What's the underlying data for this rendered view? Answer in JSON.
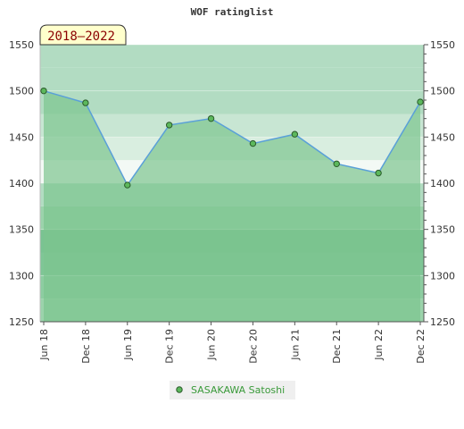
{
  "chart_data": {
    "type": "line",
    "title": "WOF ratinglist",
    "period_badge": "2018–2022",
    "ylim": [
      1250,
      1550
    ],
    "y_ticks": [
      1250,
      1300,
      1350,
      1400,
      1450,
      1500,
      1550
    ],
    "categories": [
      "Jun 18",
      "Dec 18",
      "Jun 19",
      "Dec 19",
      "Jun 20",
      "Dec 20",
      "Jun 21",
      "Dec 21",
      "Jun 22",
      "Dec 22"
    ],
    "series": [
      {
        "name": "SASAKAWA Satoshi",
        "values": [
          1500,
          1487,
          1398,
          1463,
          1470,
          1443,
          1453,
          1421,
          1411,
          1488
        ]
      }
    ],
    "grid": true,
    "legend_position": "bottom-center",
    "colors": {
      "line": "#5aa0d8",
      "marker_fill": "#5cb85c",
      "marker_stroke": "#2a5a2a",
      "area_fill": "#7cc48e",
      "legend_text": "#3a9a3a",
      "badge_fill": "#ffffcc",
      "badge_text": "#8b0000"
    }
  }
}
